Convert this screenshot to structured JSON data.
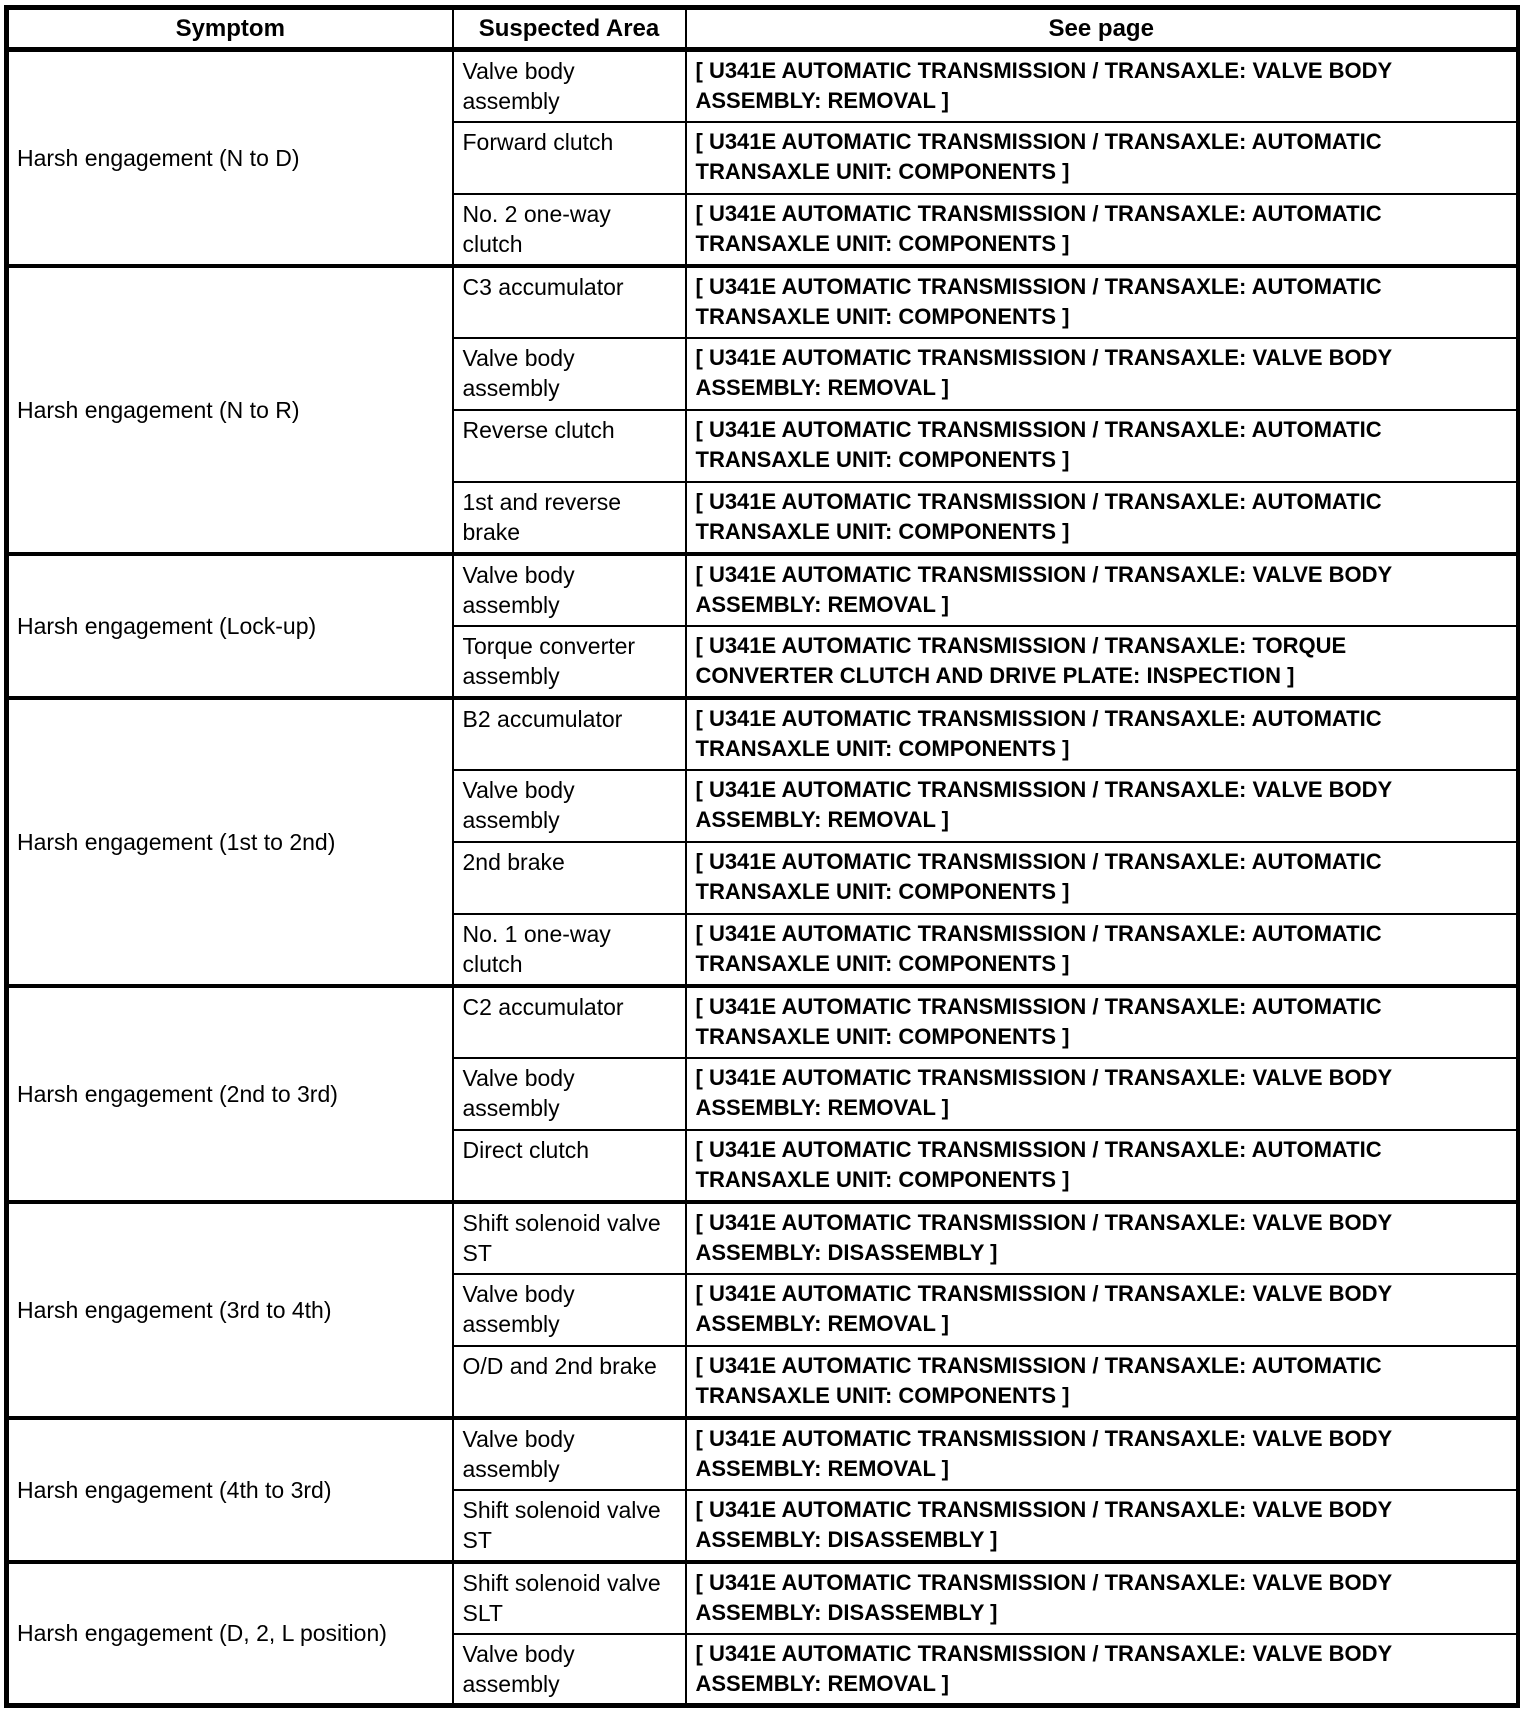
{
  "table": {
    "columns": [
      "Symptom",
      "Suspected Area",
      "See page"
    ],
    "groups": [
      {
        "symptom": "Harsh engagement (N to D)",
        "rows": [
          {
            "area": "Valve body\nassembly",
            "page": "[ U341E AUTOMATIC TRANSMISSION / TRANSAXLE: VALVE BODY\nASSEMBLY: REMOVAL ]"
          },
          {
            "area": "Forward clutch",
            "page": "[ U341E AUTOMATIC TRANSMISSION / TRANSAXLE: AUTOMATIC\nTRANSAXLE UNIT: COMPONENTS ]"
          },
          {
            "area": "No. 2 one-way\nclutch",
            "page": "[ U341E AUTOMATIC TRANSMISSION / TRANSAXLE: AUTOMATIC\nTRANSAXLE UNIT: COMPONENTS ]"
          }
        ]
      },
      {
        "symptom": "Harsh engagement (N to R)",
        "rows": [
          {
            "area": "C3 accumulator",
            "page": "[ U341E AUTOMATIC TRANSMISSION / TRANSAXLE: AUTOMATIC\nTRANSAXLE UNIT: COMPONENTS ]"
          },
          {
            "area": "Valve body\nassembly",
            "page": "[ U341E AUTOMATIC TRANSMISSION / TRANSAXLE: VALVE BODY\nASSEMBLY: REMOVAL ]"
          },
          {
            "area": "Reverse clutch",
            "page": "[ U341E AUTOMATIC TRANSMISSION / TRANSAXLE: AUTOMATIC\nTRANSAXLE UNIT: COMPONENTS ]"
          },
          {
            "area": "1st and reverse\nbrake",
            "page": "[ U341E AUTOMATIC TRANSMISSION / TRANSAXLE: AUTOMATIC\nTRANSAXLE UNIT: COMPONENTS ]"
          }
        ]
      },
      {
        "symptom": "Harsh engagement (Lock-up)",
        "rows": [
          {
            "area": "Valve body\nassembly",
            "page": "[ U341E AUTOMATIC TRANSMISSION / TRANSAXLE: VALVE BODY\nASSEMBLY: REMOVAL ]"
          },
          {
            "area": "Torque converter\nassembly",
            "page": "[ U341E AUTOMATIC TRANSMISSION / TRANSAXLE: TORQUE\nCONVERTER CLUTCH AND DRIVE PLATE: INSPECTION ]"
          }
        ]
      },
      {
        "symptom": "Harsh engagement (1st to 2nd)",
        "rows": [
          {
            "area": "B2 accumulator",
            "page": "[ U341E AUTOMATIC TRANSMISSION / TRANSAXLE: AUTOMATIC\nTRANSAXLE UNIT: COMPONENTS ]"
          },
          {
            "area": "Valve body\nassembly",
            "page": "[ U341E AUTOMATIC TRANSMISSION / TRANSAXLE: VALVE BODY\nASSEMBLY: REMOVAL ]"
          },
          {
            "area": "2nd brake",
            "page": "[ U341E AUTOMATIC TRANSMISSION / TRANSAXLE: AUTOMATIC\nTRANSAXLE UNIT: COMPONENTS ]"
          },
          {
            "area": "No. 1 one-way\nclutch",
            "page": "[ U341E AUTOMATIC TRANSMISSION / TRANSAXLE: AUTOMATIC\nTRANSAXLE UNIT: COMPONENTS ]"
          }
        ]
      },
      {
        "symptom": "Harsh engagement (2nd to 3rd)",
        "rows": [
          {
            "area": "C2 accumulator",
            "page": "[ U341E AUTOMATIC TRANSMISSION / TRANSAXLE: AUTOMATIC\nTRANSAXLE UNIT: COMPONENTS ]"
          },
          {
            "area": "Valve body\nassembly",
            "page": "[ U341E AUTOMATIC TRANSMISSION / TRANSAXLE: VALVE BODY\nASSEMBLY: REMOVAL ]"
          },
          {
            "area": "Direct clutch",
            "page": "[ U341E AUTOMATIC TRANSMISSION / TRANSAXLE: AUTOMATIC\nTRANSAXLE UNIT: COMPONENTS ]"
          }
        ]
      },
      {
        "symptom": "Harsh engagement (3rd to 4th)",
        "rows": [
          {
            "area": "Shift solenoid valve\nST",
            "page": "[ U341E AUTOMATIC TRANSMISSION / TRANSAXLE: VALVE BODY\nASSEMBLY: DISASSEMBLY ]"
          },
          {
            "area": "Valve body\nassembly",
            "page": "[ U341E AUTOMATIC TRANSMISSION / TRANSAXLE: VALVE BODY\nASSEMBLY: REMOVAL ]"
          },
          {
            "area": "O/D and 2nd brake",
            "page": "[ U341E AUTOMATIC TRANSMISSION / TRANSAXLE: AUTOMATIC\nTRANSAXLE UNIT: COMPONENTS ]"
          }
        ]
      },
      {
        "symptom": "Harsh engagement (4th to 3rd)",
        "rows": [
          {
            "area": "Valve body\nassembly",
            "page": "[ U341E AUTOMATIC TRANSMISSION / TRANSAXLE: VALVE BODY\nASSEMBLY: REMOVAL ]"
          },
          {
            "area": "Shift solenoid valve\nST",
            "page": "[ U341E AUTOMATIC TRANSMISSION / TRANSAXLE: VALVE BODY\nASSEMBLY: DISASSEMBLY ]"
          }
        ]
      },
      {
        "symptom": "Harsh engagement (D, 2, L position)",
        "rows": [
          {
            "area": "Shift solenoid valve\nSLT",
            "page": "[ U341E AUTOMATIC TRANSMISSION / TRANSAXLE: VALVE BODY\nASSEMBLY: DISASSEMBLY ]"
          },
          {
            "area": "Valve body\nassembly",
            "page": "[ U341E AUTOMATIC TRANSMISSION / TRANSAXLE: VALVE BODY\nASSEMBLY: REMOVAL ]"
          }
        ]
      }
    ]
  }
}
